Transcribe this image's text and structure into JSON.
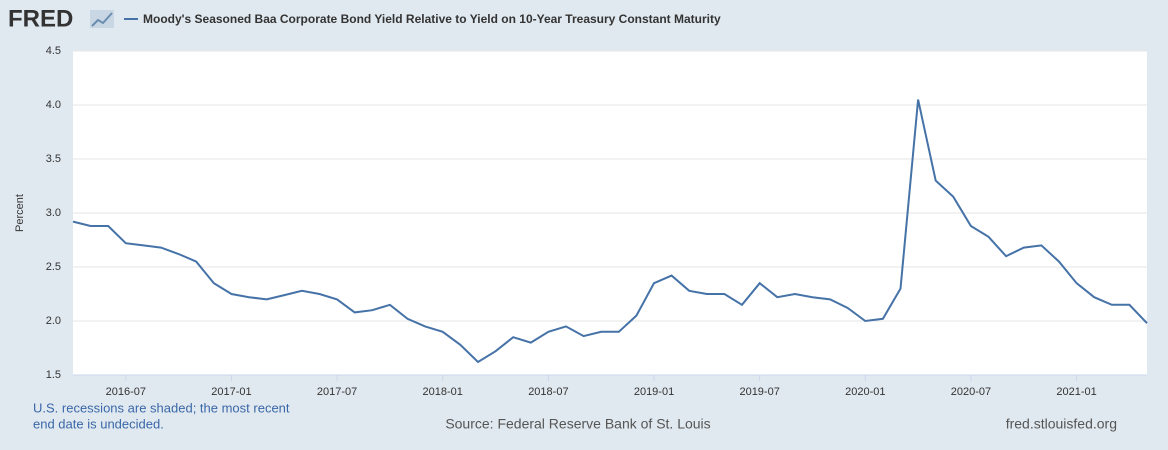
{
  "logo": "FRED",
  "chart_data": {
    "type": "line",
    "title": "Moody's Seasoned Baa Corporate Bond Yield Relative to Yield on 10-Year Treasury Constant Maturity",
    "ylabel": "Percent",
    "x": [
      "2016-04",
      "2016-05",
      "2016-06",
      "2016-07",
      "2016-08",
      "2016-09",
      "2016-10",
      "2016-11",
      "2016-12",
      "2017-01",
      "2017-02",
      "2017-03",
      "2017-04",
      "2017-05",
      "2017-06",
      "2017-07",
      "2017-08",
      "2017-09",
      "2017-10",
      "2017-11",
      "2017-12",
      "2018-01",
      "2018-02",
      "2018-03",
      "2018-04",
      "2018-05",
      "2018-06",
      "2018-07",
      "2018-08",
      "2018-09",
      "2018-10",
      "2018-11",
      "2018-12",
      "2019-01",
      "2019-02",
      "2019-03",
      "2019-04",
      "2019-05",
      "2019-06",
      "2019-07",
      "2019-08",
      "2019-09",
      "2019-10",
      "2019-11",
      "2019-12",
      "2020-01",
      "2020-02",
      "2020-03",
      "2020-04",
      "2020-05",
      "2020-06",
      "2020-07",
      "2020-08",
      "2020-09",
      "2020-10",
      "2020-11",
      "2020-12",
      "2021-01",
      "2021-02",
      "2021-03",
      "2021-04",
      "2021-05"
    ],
    "series": [
      {
        "name": "Moody's Seasoned Baa Corporate Bond Yield Relative to Yield on 10-Year Treasury Constant Maturity",
        "color": "#4572a7",
        "values": [
          2.92,
          2.88,
          2.88,
          2.72,
          2.7,
          2.68,
          2.62,
          2.55,
          2.35,
          2.25,
          2.22,
          2.2,
          2.24,
          2.28,
          2.25,
          2.2,
          2.08,
          2.1,
          2.15,
          2.02,
          1.95,
          1.9,
          1.78,
          1.62,
          1.72,
          1.85,
          1.8,
          1.9,
          1.95,
          1.86,
          1.9,
          1.9,
          2.05,
          2.35,
          2.42,
          2.28,
          2.25,
          2.25,
          2.15,
          2.35,
          2.22,
          2.25,
          2.22,
          2.2,
          2.12,
          2.0,
          2.02,
          2.3,
          4.05,
          3.3,
          3.15,
          2.88,
          2.78,
          2.6,
          2.68,
          2.7,
          2.55,
          2.35,
          2.22,
          2.15,
          2.15,
          1.98
        ]
      }
    ],
    "xlim": [
      "2016-04",
      "2021-05"
    ],
    "xticks": [
      "2016-07",
      "2017-01",
      "2017-07",
      "2018-01",
      "2018-07",
      "2019-01",
      "2019-07",
      "2020-01",
      "2020-07",
      "2021-01"
    ],
    "ylim": [
      1.5,
      4.5
    ],
    "yticks": [
      {
        "value": 1.5,
        "label": "1.5"
      },
      {
        "value": 2,
        "label": "2.0"
      },
      2.5,
      {
        "value": 3,
        "label": "3.0"
      },
      3.5,
      {
        "value": 4,
        "label": "4.0"
      },
      4.5
    ],
    "grid": true
  },
  "footer": {
    "note": [
      "U.S. recessions are shaded; the most recent",
      "end date is undecided."
    ],
    "source": "Source: Federal Reserve Bank of St. Louis",
    "site": "fred.stlouisfed.org"
  }
}
